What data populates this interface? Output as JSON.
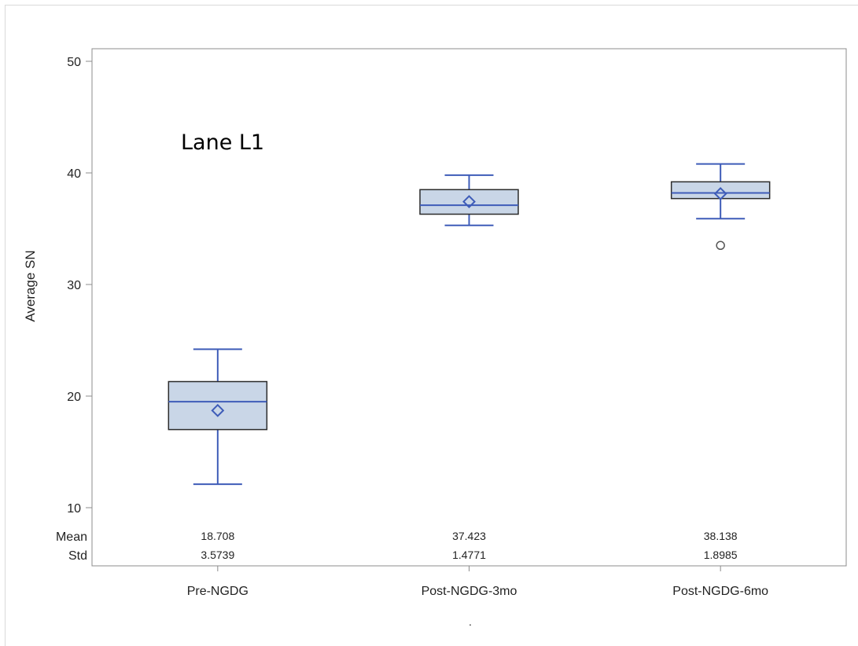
{
  "chart_data": {
    "type": "box",
    "title": "",
    "annotation": "Lane L1",
    "xlabel": "",
    "ylabel": "Average SN",
    "ylim": [
      10,
      50
    ],
    "yticks": [
      10,
      20,
      30,
      40,
      50
    ],
    "categories": [
      "Pre-NGDG",
      "Post-NGDG-3mo",
      "Post-NGDG-6mo"
    ],
    "boxes": [
      {
        "category": "Pre-NGDG",
        "min": 12.1,
        "q1": 17.0,
        "median": 19.5,
        "q3": 21.3,
        "max": 24.2,
        "mean": 18.708,
        "outliers": []
      },
      {
        "category": "Post-NGDG-3mo",
        "min": 35.3,
        "q1": 36.3,
        "median": 37.1,
        "q3": 38.5,
        "max": 39.8,
        "mean": 37.423,
        "outliers": []
      },
      {
        "category": "Post-NGDG-6mo",
        "min": 35.9,
        "q1": 37.7,
        "median": 38.2,
        "q3": 39.2,
        "max": 40.8,
        "mean": 38.138,
        "outliers": [
          33.5
        ]
      }
    ],
    "stats_table": {
      "row_labels": [
        "Mean",
        "Std"
      ],
      "rows": [
        [
          "18.708",
          "37.423",
          "38.138"
        ],
        [
          "3.5739",
          "1.4771",
          "1.8985"
        ]
      ]
    },
    "footnote": ".",
    "colors": {
      "box_fill": "#c9d6e7",
      "box_edge": "#2b2b2b",
      "whisker": "#3e5cb8",
      "mean_marker": "#3e5cb8",
      "outlier": "#555555",
      "axis": "#8c8c8c"
    },
    "grid": false
  }
}
